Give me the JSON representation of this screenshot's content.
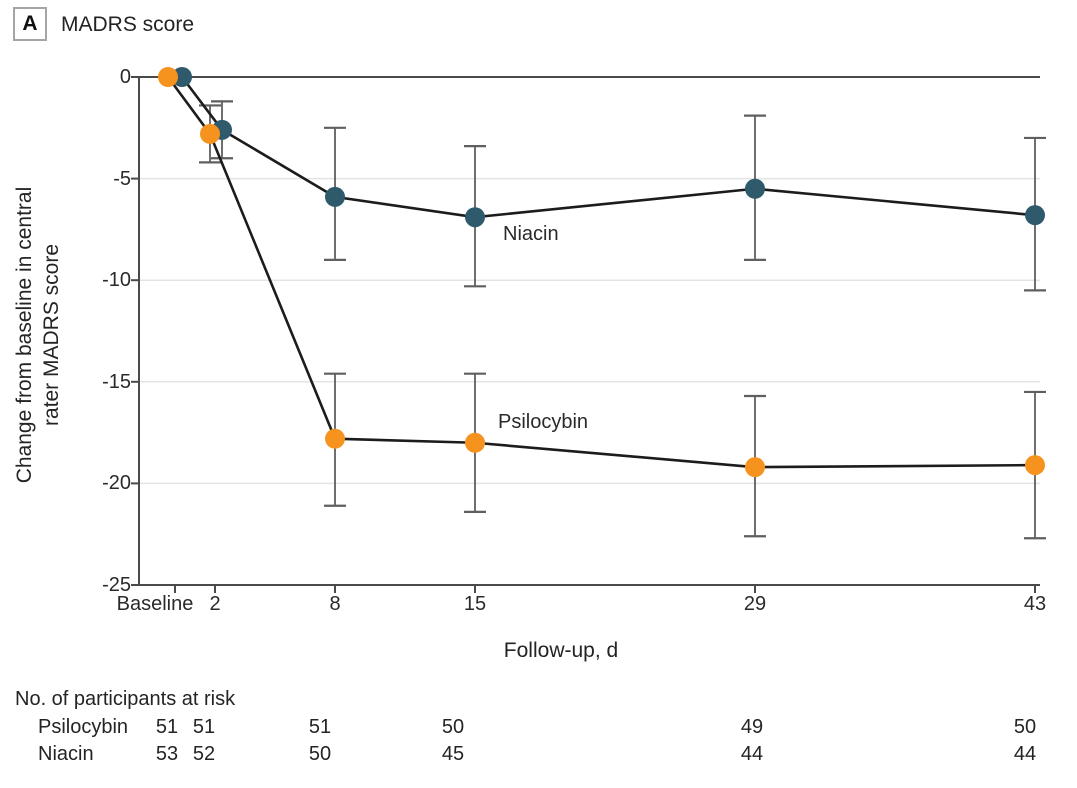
{
  "panel": {
    "letter": "A",
    "title": "MADRS score"
  },
  "chart_data": {
    "type": "line",
    "title": "MADRS score",
    "xlabel": "Follow-up, d",
    "ylabel_lines": [
      "Change from baseline in central",
      "rater MADRS score"
    ],
    "x_days": [
      0,
      2,
      8,
      15,
      29,
      43
    ],
    "x_tick_labels": [
      "Baseline",
      "2",
      "8",
      "15",
      "29",
      "43"
    ],
    "yticks": [
      0,
      -5,
      -10,
      -15,
      -20,
      -25
    ],
    "ylim": [
      -25,
      0
    ],
    "grid": "horizontal gridlines at -5, -10, -15, -20; darker rule at 0",
    "legend_position": "inline annotations next to lines",
    "series": [
      {
        "name": "Niacin",
        "annotation": "Niacin",
        "marker_color": "#2E5A6B",
        "line_color": "#1C1C1C",
        "values": [
          0,
          -2.6,
          -5.9,
          -6.9,
          -5.5,
          -6.8
        ],
        "ci_high": [
          null,
          -1.2,
          -2.5,
          -3.4,
          -1.9,
          -3.0
        ],
        "ci_low": [
          null,
          -4.0,
          -9.0,
          -10.3,
          -9.0,
          -10.5
        ],
        "marker_x_offsets_px": [
          7,
          7,
          0,
          0,
          0,
          0
        ]
      },
      {
        "name": "Psilocybin",
        "annotation": "Psilocybin",
        "marker_color": "#F6931E",
        "line_color": "#1C1C1C",
        "values": [
          0,
          -2.8,
          -17.8,
          -18.0,
          -19.2,
          -19.1
        ],
        "ci_high": [
          null,
          -1.4,
          -14.6,
          -14.6,
          -15.7,
          -15.5
        ],
        "ci_low": [
          null,
          -4.2,
          -21.1,
          -21.4,
          -22.6,
          -22.7
        ],
        "marker_x_offsets_px": [
          -7,
          -5,
          0,
          0,
          0,
          0
        ]
      }
    ],
    "error_bar_color": "#5F5F5F",
    "gridline_color": "#E4E4E4",
    "axis_color": "#4A4A4A"
  },
  "risk_table": {
    "header": "No. of participants at risk",
    "rows": [
      {
        "label": "Psilocybin",
        "values": [
          "51",
          "51",
          "51",
          "50",
          "49",
          "50"
        ]
      },
      {
        "label": "Niacin",
        "values": [
          "53",
          "52",
          "50",
          "45",
          "44",
          "44"
        ]
      }
    ]
  }
}
